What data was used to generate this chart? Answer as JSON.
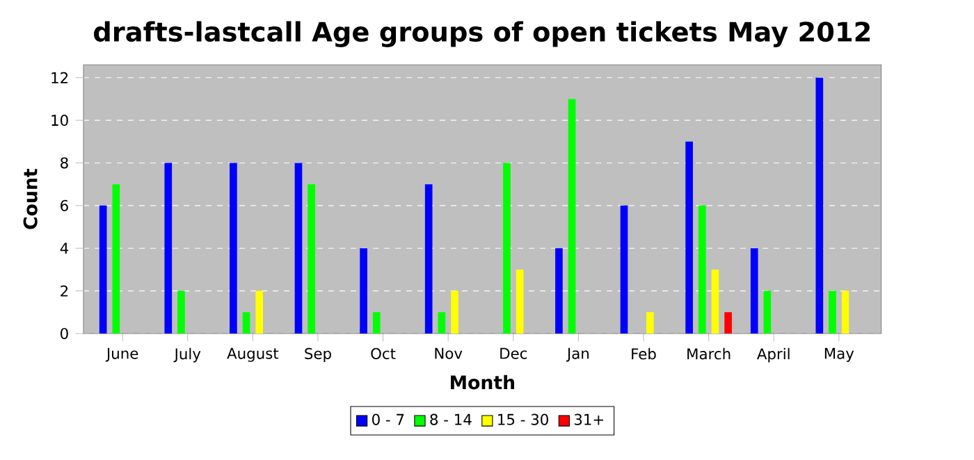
{
  "chart_data": {
    "type": "bar",
    "title": "drafts-lastcall Age groups of open tickets May 2012",
    "xlabel": "Month",
    "ylabel": "Count",
    "categories": [
      "June",
      "July",
      "August",
      "Sep",
      "Oct",
      "Nov",
      "Dec",
      "Jan",
      "Feb",
      "March",
      "April",
      "May"
    ],
    "series": [
      {
        "name": "0 - 7",
        "color": "#0000ff",
        "values": [
          6,
          8,
          8,
          8,
          4,
          7,
          0,
          4,
          6,
          9,
          4,
          12
        ]
      },
      {
        "name": "8 - 14",
        "color": "#00ff00",
        "values": [
          7,
          2,
          1,
          7,
          1,
          1,
          8,
          11,
          0,
          6,
          2,
          2
        ]
      },
      {
        "name": "15 - 30",
        "color": "#ffff00",
        "values": [
          0,
          0,
          2,
          0,
          0,
          2,
          3,
          0,
          1,
          3,
          0,
          2
        ]
      },
      {
        "name": "31+",
        "color": "#ff0000",
        "values": [
          0,
          0,
          0,
          0,
          0,
          0,
          0,
          0,
          0,
          1,
          0,
          0
        ]
      }
    ],
    "ylim": [
      0,
      12.6
    ],
    "yticks": [
      0,
      2,
      4,
      6,
      8,
      10,
      12
    ],
    "grid": "y",
    "legend": "bottom"
  }
}
